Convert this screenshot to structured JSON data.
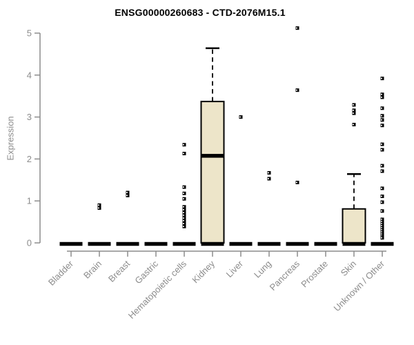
{
  "chart_data": {
    "type": "box",
    "title": "ENSG00000260683 - CTD-2076M15.1",
    "ylabel": "Expression",
    "xlabel": "",
    "ylim": [
      0,
      5
    ],
    "yticks": [
      0,
      1,
      2,
      3,
      4,
      5
    ],
    "grid": false,
    "legend": "none",
    "colors": {
      "box_fill": "#EDE5C9",
      "box_stroke": "#000000",
      "axis": "#8c8c8c",
      "tick_label": "#8c8c8c",
      "title": "#000000",
      "outlier": "#000000"
    },
    "categories": [
      "Bladder",
      "Brain",
      "Breast",
      "Gastric",
      "Hematopoietic cells",
      "Kidney",
      "Liver",
      "Lung",
      "Pancreas",
      "Prostate",
      "Skin",
      "Unknown / Other"
    ],
    "boxes": [
      {
        "category": "Bladder",
        "whisker_low": 0,
        "q1": 0,
        "median": 0,
        "q3": 0,
        "whisker_high": 0,
        "outliers": []
      },
      {
        "category": "Brain",
        "whisker_low": 0,
        "q1": 0,
        "median": 0,
        "q3": 0,
        "whisker_high": 0,
        "outliers": [
          0.9,
          0.83
        ]
      },
      {
        "category": "Breast",
        "whisker_low": 0,
        "q1": 0,
        "median": 0,
        "q3": 0,
        "whisker_high": 0,
        "outliers": [
          1.2,
          1.13
        ]
      },
      {
        "category": "Gastric",
        "whisker_low": 0,
        "q1": 0,
        "median": 0,
        "q3": 0,
        "whisker_high": 0,
        "outliers": []
      },
      {
        "category": "Hematopoietic cells",
        "whisker_low": 0,
        "q1": 0,
        "median": 0,
        "q3": 0,
        "whisker_high": 0,
        "outliers": [
          2.34,
          2.13,
          1.33,
          1.18,
          1.05,
          0.86,
          0.79,
          0.72,
          0.66,
          0.59,
          0.53,
          0.46,
          0.39
        ]
      },
      {
        "category": "Kidney",
        "whisker_low": 0,
        "q1": 0,
        "median": 2.1,
        "q3": 3.37,
        "whisker_high": 4.64,
        "outliers": []
      },
      {
        "category": "Liver",
        "whisker_low": 0,
        "q1": 0,
        "median": 0,
        "q3": 0,
        "whisker_high": 0,
        "outliers": [
          3.0
        ]
      },
      {
        "category": "Lung",
        "whisker_low": 0,
        "q1": 0,
        "median": 0,
        "q3": 0,
        "whisker_high": 0,
        "outliers": [
          1.67,
          1.53
        ]
      },
      {
        "category": "Pancreas",
        "whisker_low": 0,
        "q1": 0,
        "median": 0,
        "q3": 0,
        "whisker_high": 0,
        "outliers": [
          5.12,
          3.64,
          1.44
        ]
      },
      {
        "category": "Prostate",
        "whisker_low": 0,
        "q1": 0,
        "median": 0,
        "q3": 0,
        "whisker_high": 0,
        "outliers": []
      },
      {
        "category": "Skin",
        "whisker_low": 0,
        "q1": 0,
        "median": 0,
        "q3": 0.81,
        "whisker_high": 1.64,
        "outliers": [
          3.29,
          3.16,
          3.09,
          2.82
        ]
      },
      {
        "category": "Unknown / Other",
        "whisker_low": 0,
        "q1": 0,
        "median": 0,
        "q3": 0,
        "whisker_high": 0,
        "outliers": [
          3.92,
          3.54,
          3.47,
          3.21,
          3.03,
          2.93,
          2.8,
          2.35,
          2.22,
          1.84,
          1.71,
          1.3,
          1.11,
          0.97,
          0.76,
          0.56,
          0.51,
          0.46,
          0.41,
          0.36,
          0.31,
          0.26,
          0.21,
          0.16,
          0.12
        ]
      }
    ]
  }
}
